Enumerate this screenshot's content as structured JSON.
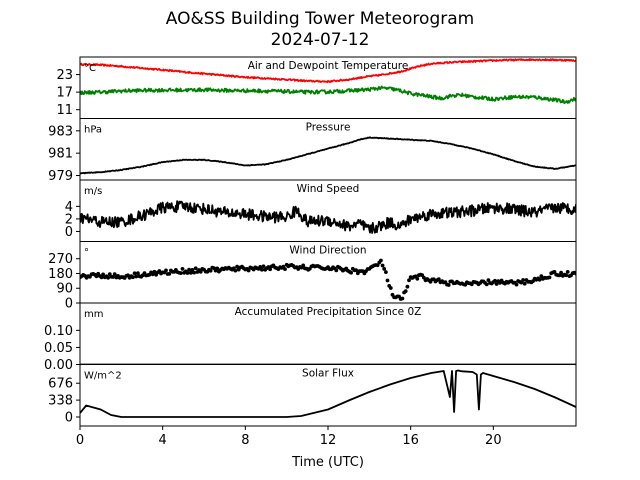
{
  "title_line1": "AO&SS Building Tower Meteorogram",
  "title_line2": "2024-07-12",
  "chart_data": {
    "type": "line",
    "xlabel": "Time (UTC)",
    "xlim": [
      0,
      24
    ],
    "xticks": [
      0,
      4,
      8,
      12,
      16,
      20
    ],
    "panels": [
      {
        "label": "Air and Dewpoint Temperature",
        "unit": "°C",
        "ylim": [
          8,
          29
        ],
        "yticks": [
          11,
          17,
          23
        ],
        "series": [
          {
            "color": "#ff0000",
            "noise": 0.25,
            "x": [
              0,
              1,
              2,
              3,
              4,
              5,
              6,
              7,
              8,
              9,
              10,
              11,
              12,
              13,
              13.5,
              14,
              14.5,
              15,
              15.5,
              16,
              16.5,
              17,
              18,
              19,
              20,
              21,
              22,
              23,
              24
            ],
            "y": [
              26.5,
              26.3,
              25.8,
              25.2,
              24.6,
              23.9,
              23.3,
              22.7,
              22.1,
              21.7,
              21.3,
              20.8,
              20.6,
              21.3,
              21.9,
              22.4,
              22.8,
              23.4,
              24.0,
              25.0,
              26.0,
              26.7,
              27.2,
              27.5,
              27.8,
              28.0,
              28.1,
              28.0,
              27.8
            ]
          },
          {
            "color": "#008000",
            "noise": 0.6,
            "x": [
              0,
              1,
              2,
              3,
              4,
              5,
              6,
              7,
              8,
              9,
              10,
              11,
              12,
              13,
              14,
              14.5,
              15,
              15.5,
              16,
              16.5,
              17,
              17.5,
              18,
              18.5,
              19,
              20,
              21,
              22,
              23,
              23.5,
              24
            ],
            "y": [
              16.8,
              17.0,
              17.4,
              17.6,
              17.7,
              17.7,
              17.8,
              17.6,
              17.5,
              17.4,
              17.2,
              17.0,
              17.1,
              17.5,
              17.9,
              18.4,
              18.2,
              17.5,
              16.5,
              16.0,
              15.4,
              14.9,
              15.8,
              16.0,
              15.4,
              14.6,
              15.4,
              15.3,
              14.3,
              13.6,
              14.8
            ]
          }
        ]
      },
      {
        "label": "Pressure",
        "unit": "hPa",
        "ylim": [
          978.6,
          984.1
        ],
        "yticks": [
          979,
          981,
          983
        ],
        "series": [
          {
            "color": "#000000",
            "noise": 0.03,
            "x": [
              0,
              1,
              2,
              3,
              4,
              5,
              6,
              7,
              8,
              9,
              10,
              11,
              12,
              13,
              13.5,
              14,
              15,
              16,
              17,
              18,
              19,
              20,
              21,
              22,
              23,
              24
            ],
            "y": [
              979.2,
              979.3,
              979.5,
              979.8,
              980.2,
              980.4,
              980.4,
              980.2,
              979.9,
              980.0,
              980.4,
              980.9,
              981.4,
              981.9,
              982.2,
              982.4,
              982.3,
              982.2,
              982.1,
              981.8,
              981.4,
              980.9,
              980.3,
              979.8,
              979.6,
              979.9
            ]
          }
        ]
      },
      {
        "label": "Wind Speed",
        "unit": "m/s",
        "ylim": [
          -1.6,
          8.2
        ],
        "yticks": [
          0,
          2,
          4
        ],
        "series": [
          {
            "color": "#000000",
            "noise": 0.9,
            "x": [
              0,
              1,
              2,
              3,
              4,
              5,
              6,
              7,
              8,
              9,
              10,
              10.5,
              11,
              12,
              13,
              13.5,
              14,
              14.5,
              15,
              15.5,
              16,
              17,
              18,
              19,
              20,
              21,
              22,
              23,
              24
            ],
            "y": [
              2.2,
              1.5,
              1.5,
              2.5,
              3.8,
              4.0,
              3.6,
              3.0,
              2.8,
              2.3,
              2.3,
              3.4,
              1.5,
              1.8,
              0.8,
              1.2,
              0.3,
              0.8,
              1.5,
              0.8,
              2.0,
              2.8,
              3.0,
              3.3,
              3.8,
              3.5,
              3.0,
              3.8,
              3.6
            ]
          }
        ]
      },
      {
        "label": "Wind Direction",
        "unit": "°",
        "ylim": [
          0,
          375
        ],
        "yticks": [
          0,
          90,
          180,
          270
        ],
        "series": [
          {
            "color": "#000000",
            "noise": 14,
            "style": "dots",
            "x": [
              0,
              1,
              2,
              3,
              4,
              5,
              6,
              7,
              8,
              9,
              10,
              11,
              12,
              13,
              13.8,
              14.3,
              14.6,
              15.2,
              15.6,
              16,
              16.5,
              17,
              18,
              19,
              20,
              21,
              22,
              23,
              24
            ],
            "y": [
              165,
              170,
              160,
              175,
              185,
              195,
              200,
              205,
              210,
              215,
              220,
              215,
              215,
              200,
              190,
              230,
              250,
              25,
              30,
              150,
              160,
              140,
              120,
              115,
              130,
              120,
              140,
              180,
              175
            ]
          }
        ]
      },
      {
        "label": "Accumulated Precipitation Since 0Z",
        "unit": "mm",
        "ylim": [
          0,
          0.18
        ],
        "yticks": [
          0.0,
          0.05,
          0.1
        ],
        "series": [
          {
            "color": "#000000",
            "noise": 0,
            "x": [
              0,
              24
            ],
            "y": [
              0,
              0
            ]
          }
        ]
      },
      {
        "label": "Solar Flux",
        "unit": "W/m^2",
        "ylim": [
          -180,
          1050
        ],
        "yticks": [
          0,
          338,
          676
        ],
        "series": [
          {
            "color": "#000000",
            "noise": 0,
            "x": [
              0,
              0.3,
              1,
              1.5,
              2,
              3,
              10,
              10.7,
              12,
              13,
              14,
              15,
              16,
              17,
              17.6,
              17.9,
              18.0,
              18.1,
              18.2,
              18.3,
              18.4,
              18.5,
              19,
              19.2,
              19.3,
              19.4,
              19.5,
              20,
              21,
              22,
              23,
              24
            ],
            "y": [
              80,
              230,
              150,
              40,
              0,
              0,
              0,
              20,
              150,
              330,
              500,
              650,
              780,
              880,
              920,
              400,
              920,
              100,
              920,
              930,
              920,
              915,
              900,
              850,
              150,
              850,
              880,
              820,
              700,
              560,
              390,
              200
            ]
          }
        ]
      }
    ]
  }
}
